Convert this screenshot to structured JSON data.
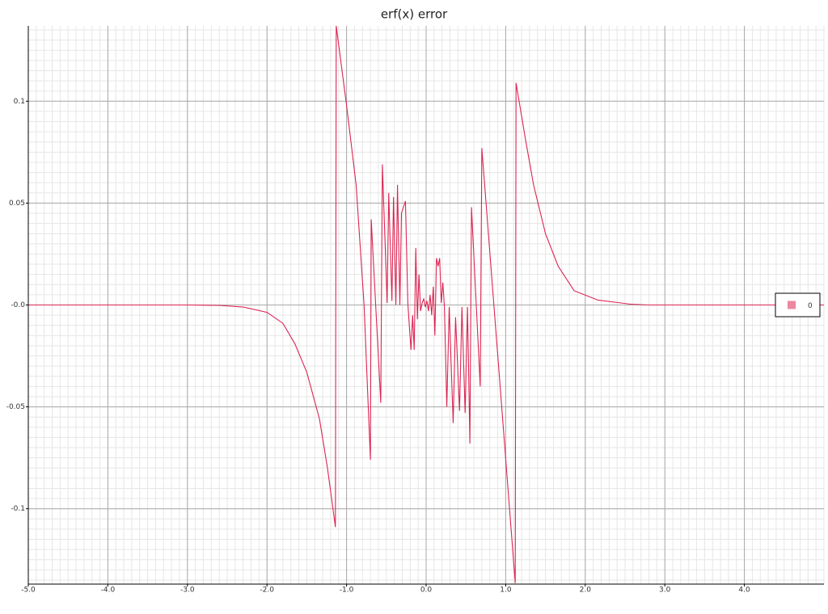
{
  "chart_data": {
    "type": "line",
    "title": "erf(x) error",
    "x": [
      -5,
      -4,
      -3,
      -2.6,
      -2.3,
      -2.0,
      -1.8,
      -1.65,
      -1.5,
      -1.34,
      -1.24,
      -1.14,
      -1.13,
      -1.0,
      -0.88,
      -0.78,
      -0.7,
      -0.69,
      -0.57,
      -0.55,
      -0.49,
      -0.47,
      -0.43,
      -0.41,
      -0.38,
      -0.36,
      -0.33,
      -0.31,
      -0.26,
      -0.23,
      -0.21,
      -0.19,
      -0.17,
      -0.15,
      -0.13,
      -0.11,
      -0.09,
      -0.07,
      -0.05,
      -0.03,
      -0.01,
      0.01,
      0.03,
      0.05,
      0.07,
      0.09,
      0.11,
      0.13,
      0.15,
      0.17,
      0.19,
      0.21,
      0.23,
      0.26,
      0.29,
      0.34,
      0.37,
      0.42,
      0.45,
      0.49,
      0.52,
      0.55,
      0.57,
      0.68,
      0.7,
      1.12,
      1.13,
      1.25,
      1.35,
      1.5,
      1.66,
      1.86,
      2.16,
      2.57,
      2.8,
      3,
      4,
      5
    ],
    "series": [
      {
        "name": "0",
        "color": "#dc2452",
        "values": [
          0,
          0,
          0,
          -0.0002,
          -0.001,
          -0.0036,
          -0.009,
          -0.019,
          -0.033,
          -0.056,
          -0.08,
          -0.109,
          0.137,
          0.098,
          0.059,
          0.0,
          -0.076,
          0.042,
          -0.048,
          0.069,
          0.001,
          0.055,
          0.002,
          0.053,
          0.0,
          0.059,
          0.0,
          0.045,
          0.051,
          0.001,
          -0.011,
          -0.022,
          -0.005,
          -0.022,
          0.028,
          -0.007,
          0.015,
          -0.003,
          0.001,
          0.003,
          -0.001,
          0.002,
          -0.003,
          0.005,
          -0.005,
          0.009,
          -0.015,
          0.023,
          0.019,
          0.023,
          0.001,
          0.011,
          -0.001,
          -0.05,
          -0.001,
          -0.058,
          -0.006,
          -0.052,
          -0.001,
          -0.053,
          -0.001,
          -0.068,
          0.048,
          -0.04,
          0.077,
          -0.1365,
          0.109,
          0.081,
          0.059,
          0.035,
          0.019,
          0.007,
          0.0024,
          0.0004,
          0,
          0,
          0,
          0
        ]
      }
    ],
    "xlim": [
      -5,
      5
    ],
    "ylim": [
      -0.137,
      0.137
    ],
    "xticks": [
      {
        "value": -5,
        "label": "-5.0"
      },
      {
        "value": -4,
        "label": "-4.0"
      },
      {
        "value": -3,
        "label": "-3.0"
      },
      {
        "value": -2,
        "label": "-2.0"
      },
      {
        "value": -1,
        "label": "-1.0"
      },
      {
        "value": 0,
        "label": "0.0"
      },
      {
        "value": 1,
        "label": "1.0"
      },
      {
        "value": 2,
        "label": "2.0"
      },
      {
        "value": 3,
        "label": "3.0"
      },
      {
        "value": 4,
        "label": "4.0"
      }
    ],
    "yticks": [
      -0.1,
      -0.05,
      {
        "value": 0,
        "label": "-0.0"
      },
      0.05,
      0.1
    ],
    "grid": true,
    "legend": "right"
  }
}
